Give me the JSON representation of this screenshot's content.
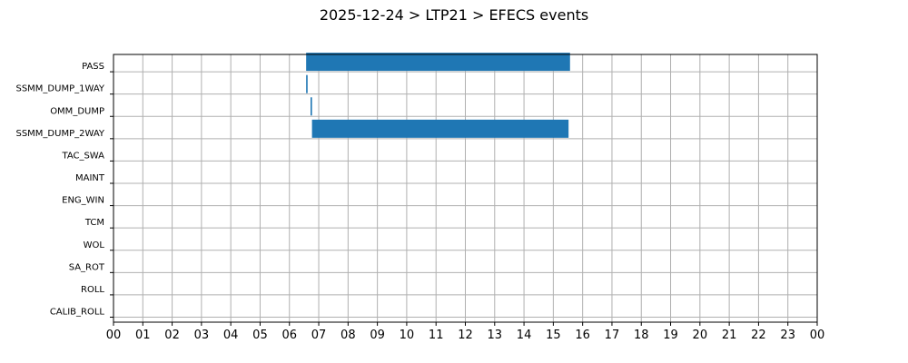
{
  "chart_data": {
    "type": "bar",
    "orientation": "horizontal",
    "title": "2025-12-24 > LTP21 > EFECS events",
    "xlabel": "",
    "ylabel": "",
    "xlim": [
      0,
      24
    ],
    "grid": true,
    "bar_color": "#1f77b4",
    "categories": [
      "PASS",
      "SSMM_DUMP_1WAY",
      "OMM_DUMP",
      "SSMM_DUMP_2WAY",
      "TAC_SWA",
      "MAINT",
      "ENG_WIN",
      "TCM",
      "WOL",
      "SA_ROT",
      "ROLL",
      "CALIB_ROLL"
    ],
    "x_tick_labels": [
      "00",
      "01",
      "02",
      "03",
      "04",
      "05",
      "06",
      "07",
      "08",
      "09",
      "10",
      "11",
      "12",
      "13",
      "14",
      "15",
      "16",
      "17",
      "18",
      "19",
      "20",
      "21",
      "22",
      "23",
      "00"
    ],
    "events": [
      {
        "category": "PASS",
        "start": 6.57,
        "end": 15.57
      },
      {
        "category": "SSMM_DUMP_1WAY",
        "start": 6.57,
        "end": 6.62
      },
      {
        "category": "OMM_DUMP",
        "start": 6.72,
        "end": 6.77
      },
      {
        "category": "SSMM_DUMP_2WAY",
        "start": 6.77,
        "end": 15.52
      }
    ]
  }
}
